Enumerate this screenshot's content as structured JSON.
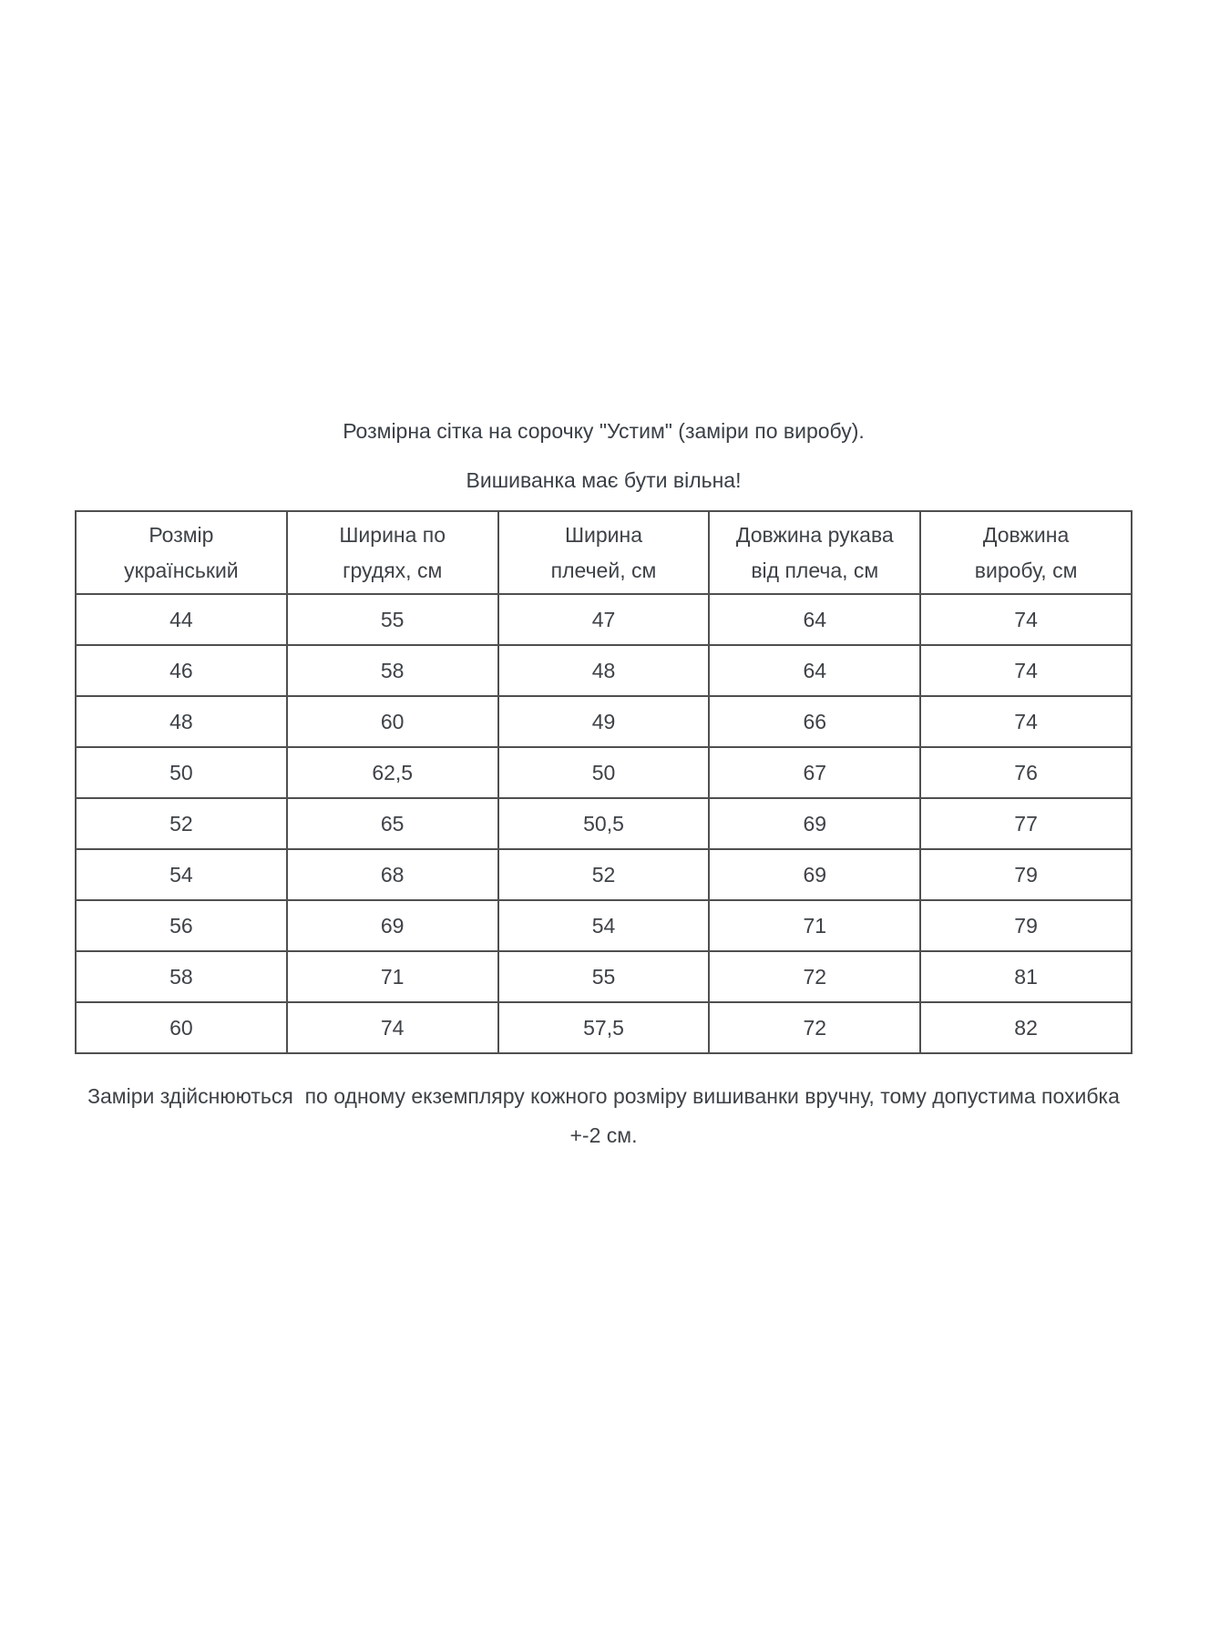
{
  "colors": {
    "background": "#ffffff",
    "text": "#3e4247",
    "border": "#4f4f4f"
  },
  "title": {
    "line1": "Розмірна сітка на сорочку \"Устим\" (заміри по виробу).",
    "line2": "Вишиванка має бути вільна!"
  },
  "table": {
    "columns": [
      {
        "line1": "Розмір",
        "line2": "український"
      },
      {
        "line1": "Ширина по",
        "line2": "грудях, см"
      },
      {
        "line1": "Ширина",
        "line2": "плечей, см"
      },
      {
        "line1": "Довжина рукава",
        "line2": "від плеча, см"
      },
      {
        "line1": "Довжина",
        "line2": "виробу, см"
      }
    ],
    "rows": [
      [
        "44",
        "55",
        "47",
        "64",
        "74"
      ],
      [
        "46",
        "58",
        "48",
        "64",
        "74"
      ],
      [
        "48",
        "60",
        "49",
        "66",
        "74"
      ],
      [
        "50",
        "62,5",
        "50",
        "67",
        "76"
      ],
      [
        "52",
        "65",
        "50,5",
        "69",
        "77"
      ],
      [
        "54",
        "68",
        "52",
        "69",
        "79"
      ],
      [
        "56",
        "69",
        "54",
        "71",
        "79"
      ],
      [
        "58",
        "71",
        "55",
        "72",
        "81"
      ],
      [
        "60",
        "74",
        "57,5",
        "72",
        "82"
      ]
    ]
  },
  "footnote": "Заміри здійснюються  по одному екземпляру кожного розміру вишиванки вручну, тому допустима похибка +-2 см."
}
